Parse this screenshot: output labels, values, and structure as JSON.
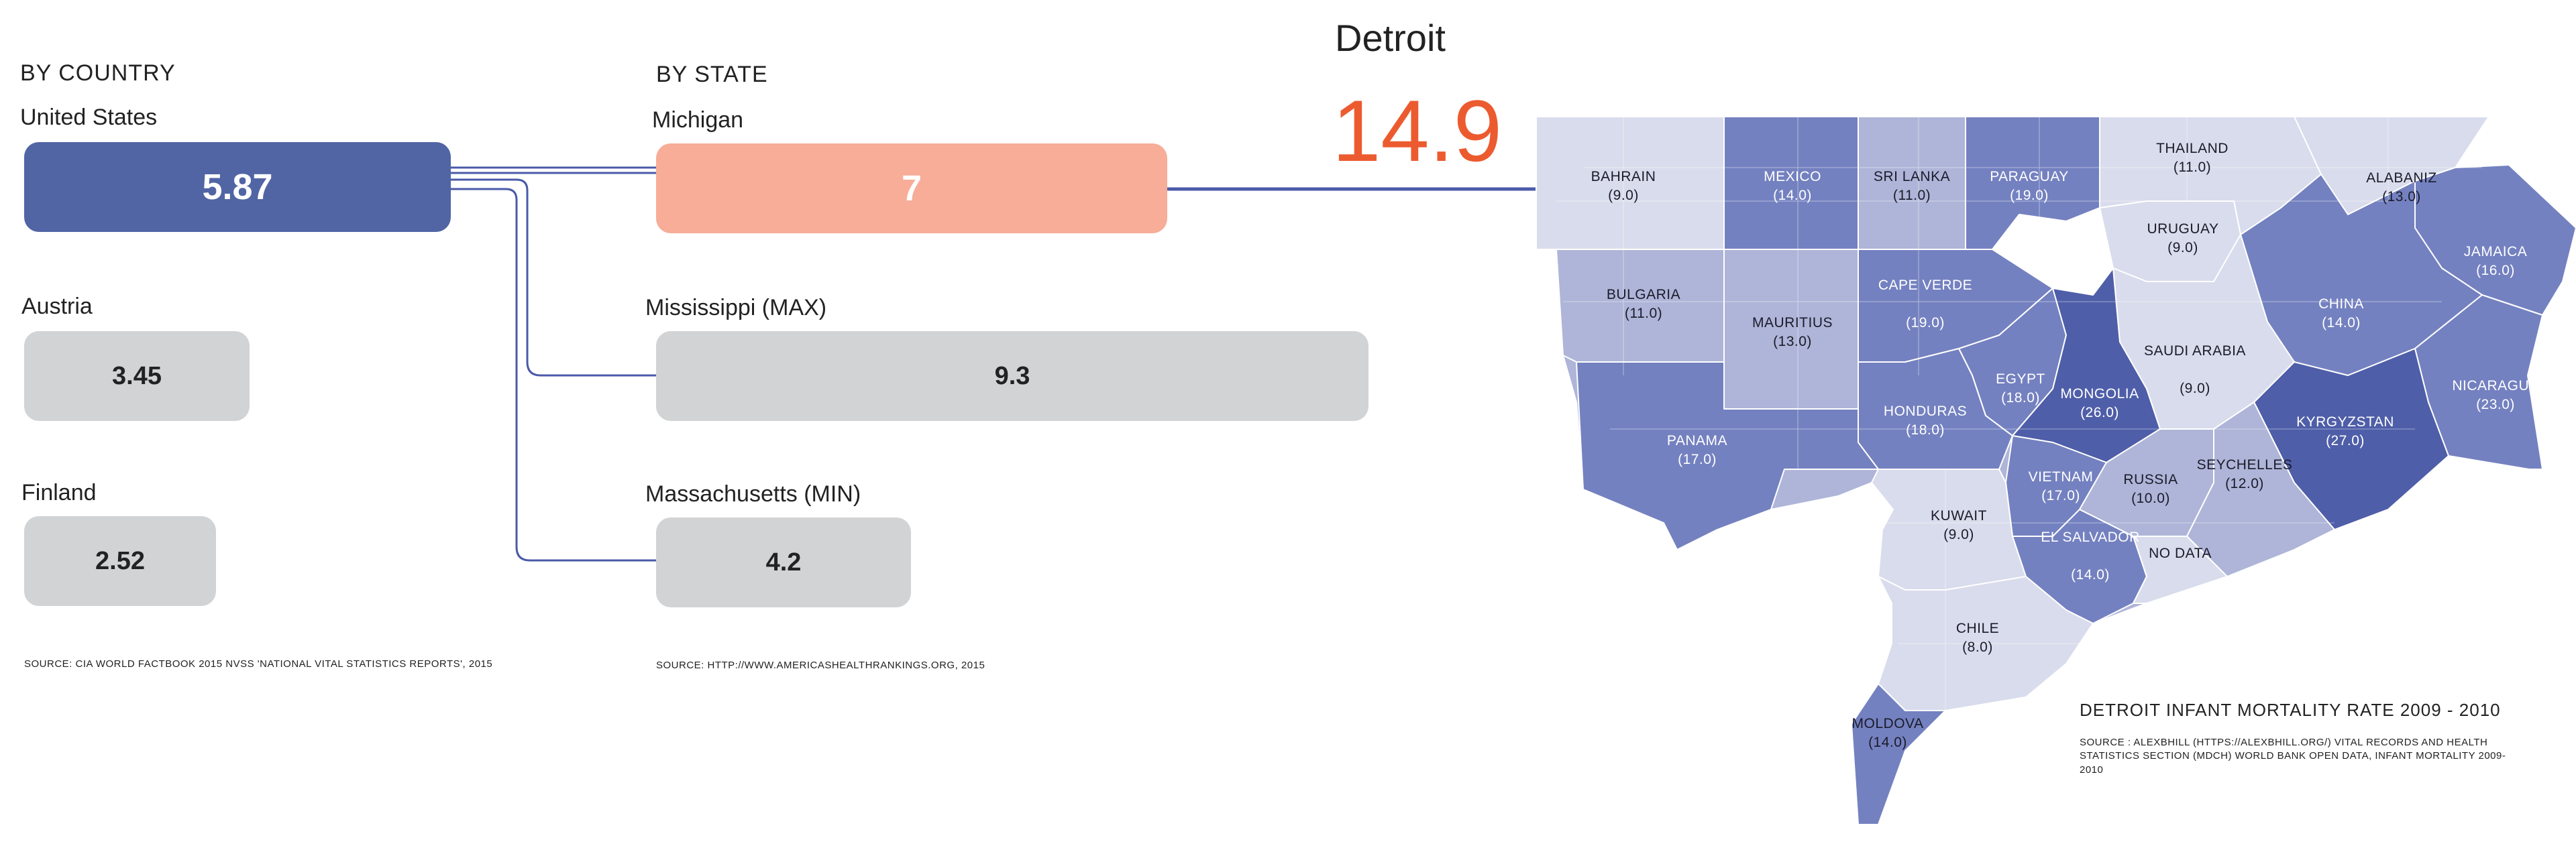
{
  "country": {
    "heading": "BY COUNTRY",
    "items": [
      {
        "name": "United States",
        "value": "5.87",
        "num": 5.87
      },
      {
        "name": "Austria",
        "value": "3.45",
        "num": 3.45
      },
      {
        "name": "Finland",
        "value": "2.52",
        "num": 2.52
      }
    ],
    "source": "SOURCE:   CIA WORLD FACTBOOK 2015 NVSS 'NATIONAL VITAL STATISTICS REPORTS', 2015"
  },
  "state": {
    "heading": "BY STATE",
    "items": [
      {
        "name": "Michigan",
        "value": "7",
        "num": 7
      },
      {
        "name": "Mississippi (MAX)",
        "value": "9.3",
        "num": 9.3
      },
      {
        "name": "Massachusetts (MIN)",
        "value": "4.2",
        "num": 4.2
      }
    ],
    "source": "SOURCE:   HTTP://WWW.AMERICASHEALTHRANKINGS.ORG, 2015"
  },
  "city": {
    "name": "Detroit",
    "value": "14.9",
    "value_color": "#ec5b2f"
  },
  "colors": {
    "us_bar": "#5165a5",
    "michigan_bar": "#f7ad97",
    "gray_bar": "#d2d3d5",
    "connector": "#4a5aa8",
    "map_light": "#d9dcec",
    "map_mid": "#aeb5d8",
    "map_dark": "#7481c0",
    "map_darkest": "#4f5ea8"
  },
  "map": {
    "title": "DETROIT INFANT MORTALITY RATE 2009 - 2010",
    "source": "SOURCE : ALEXBHILL (HTTPS://ALEXBHILL.ORG/) VITAL RECORDS AND HEALTH STATISTICS SECTION (MDCH) WORLD BANK OPEN DATA, INFANT MORTALITY 2009-2010",
    "regions": [
      {
        "name": "BAHRAIN",
        "value": "(9.0)",
        "rate": 9.0
      },
      {
        "name": "MEXICO",
        "value": "(14.0)",
        "rate": 14.0
      },
      {
        "name": "SRI LANKA",
        "value": "(11.0)",
        "rate": 11.0
      },
      {
        "name": "PARAGUAY",
        "value": "(19.0)",
        "rate": 19.0
      },
      {
        "name": "THAILAND",
        "value": "(11.0)",
        "rate": 11.0
      },
      {
        "name": "ALABANIZ",
        "value": "(13.0)",
        "rate": 13.0
      },
      {
        "name": "URUGUAY",
        "value": "(9.0)",
        "rate": 9.0
      },
      {
        "name": "JAMAICA",
        "value": "(16.0)",
        "rate": 16.0
      },
      {
        "name": "BULGARIA",
        "value": "(11.0)",
        "rate": 11.0
      },
      {
        "name": "MAURITIUS",
        "value": "(13.0)",
        "rate": 13.0
      },
      {
        "name": "CAPE VERDE",
        "value": "(19.0)",
        "rate": 19.0
      },
      {
        "name": "CHINA",
        "value": "(14.0)",
        "rate": 14.0
      },
      {
        "name": "SAUDI ARABIA",
        "value": "(9.0)",
        "rate": 9.0
      },
      {
        "name": "EGYPT",
        "value": "(18.0)",
        "rate": 18.0
      },
      {
        "name": "MONGOLIA",
        "value": "(26.0)",
        "rate": 26.0
      },
      {
        "name": "NICARAGUA",
        "value": "(23.0)",
        "rate": 23.0
      },
      {
        "name": "HONDURAS",
        "value": "(18.0)",
        "rate": 18.0
      },
      {
        "name": "KYRGYZSTAN",
        "value": "(27.0)",
        "rate": 27.0
      },
      {
        "name": "PANAMA",
        "value": "(17.0)",
        "rate": 17.0
      },
      {
        "name": "VIETNAM",
        "value": "(17.0)",
        "rate": 17.0
      },
      {
        "name": "RUSSIA",
        "value": "(10.0)",
        "rate": 10.0
      },
      {
        "name": "SEYCHELLES",
        "value": "(12.0)",
        "rate": 12.0
      },
      {
        "name": "KUWAIT",
        "value": "(9.0)",
        "rate": 9.0
      },
      {
        "name": "EL SALVADOR",
        "value": "(14.0)",
        "rate": 14.0
      },
      {
        "name": "NO DATA",
        "value": ""
      },
      {
        "name": "CHILE",
        "value": "(8.0)",
        "rate": 8.0
      },
      {
        "name": "MOLDOVA",
        "value": "(14.0)",
        "rate": 14.0
      }
    ]
  }
}
